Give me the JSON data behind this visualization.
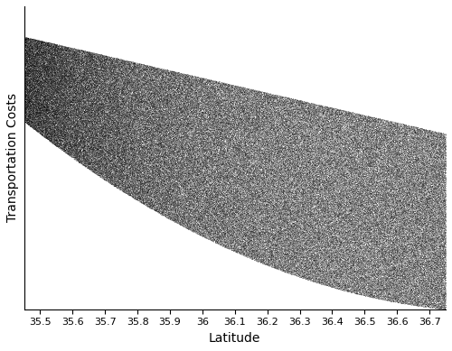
{
  "xlabel": "Latitude",
  "ylabel": "Transportation Costs",
  "xlim": [
    35.45,
    36.75
  ],
  "ylim": [
    0.0,
    1.0
  ],
  "x_ticks": [
    35.5,
    35.6,
    35.7,
    35.8,
    35.9,
    36.0,
    36.1,
    36.2,
    36.3,
    36.4,
    36.5,
    36.6,
    36.7
  ],
  "x_tick_labels": [
    "35.5",
    "35.6",
    "35.7",
    "35.8",
    "35.9",
    "36",
    "36.1",
    "36.2",
    "36.3",
    "36.4",
    "36.5",
    "36.6",
    "36.7"
  ],
  "n_points": 500000,
  "seed": 42,
  "lat_min": 35.45,
  "lat_max": 36.75,
  "point_color": "#000000",
  "point_alpha": 0.08,
  "point_size": 0.5,
  "bg_color": "#ffffff",
  "figsize": [
    5.0,
    3.89
  ],
  "dpi": 100,
  "upper_p0": 0.88,
  "upper_p1": -0.32,
  "upper_p2": 0.0,
  "lower_p0": 0.62,
  "lower_p1": -0.62,
  "lower_p2": 0.08
}
